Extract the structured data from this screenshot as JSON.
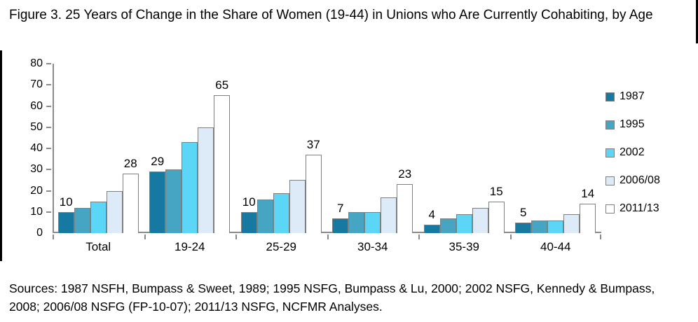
{
  "figure": {
    "title": "Figure 3. 25 Years of Change in the Share of Women (19-44) in Unions who Are Currently Cohabiting, by Age",
    "sources": "Sources: 1987 NSFH, Bumpass & Sweet, 1989; 1995 NSFG, Bumpass & Lu, 2000; 2002 NSFG, Kennedy & Bumpass, 2008; 2006/08 NSFG (FP-10-07); 2011/13 NSFG, NCFMR Analyses."
  },
  "chart_data": {
    "type": "bar",
    "title": "Figure 3. 25 Years of Change in the Share of Women (19-44) in Unions who Are Currently Cohabiting, by Age",
    "categories": [
      "Total",
      "19-24",
      "25-29",
      "30-34",
      "35-39",
      "40-44"
    ],
    "series": [
      {
        "name": "1987",
        "color": "#1579A1",
        "values": [
          10,
          29,
          10,
          7,
          4,
          5
        ]
      },
      {
        "name": "1995",
        "color": "#45A5C3",
        "values": [
          12,
          30,
          16,
          10,
          7,
          6
        ]
      },
      {
        "name": "2002",
        "color": "#5CD6F7",
        "values": [
          15,
          43,
          19,
          10,
          9,
          6
        ]
      },
      {
        "name": "2006/08",
        "color": "#DCEBF7",
        "values": [
          20,
          50,
          25,
          17,
          12,
          9
        ]
      },
      {
        "name": "2011/13",
        "color": "#FFFFFF",
        "values": [
          28,
          65,
          37,
          23,
          15,
          14
        ]
      }
    ],
    "value_labels_on_series": [
      0,
      4
    ],
    "xlabel": "",
    "ylabel": "",
    "ylim": [
      0,
      80
    ],
    "ytick_step": 10,
    "grid": false,
    "legend_position": "right",
    "axis_color": "#8a8a8a",
    "bar_border_color": "#7f7f7f"
  }
}
